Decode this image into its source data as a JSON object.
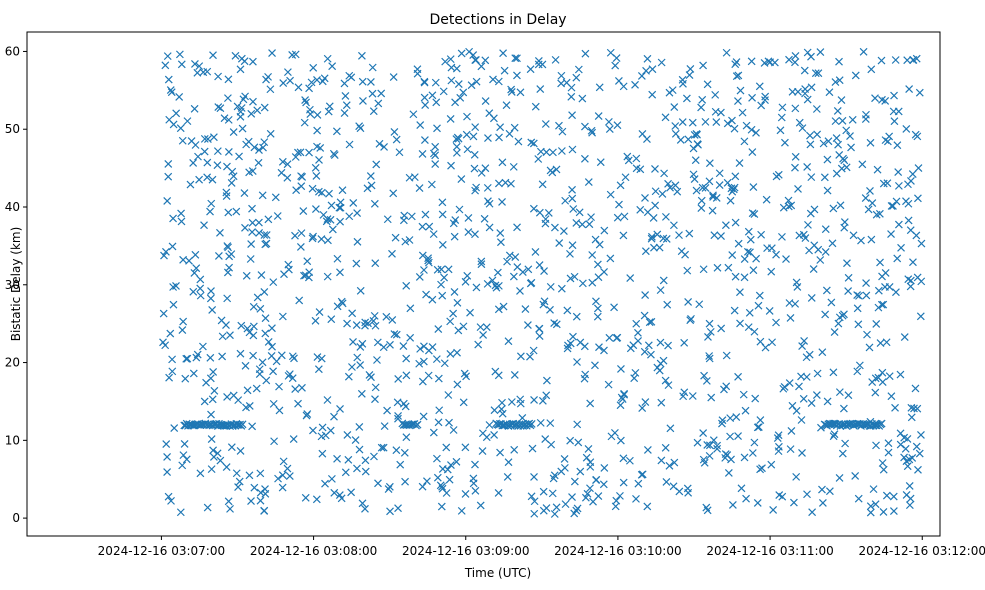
{
  "chart_data": {
    "type": "scatter",
    "title": "Detections in Delay",
    "xlabel": "Time (UTC)",
    "ylabel": "Bistatic Delay (km)",
    "marker": "x",
    "color": "#1f77b4",
    "grid": false,
    "x_unit": "seconds after 2024-12-16 03:07:00",
    "xlim": [
      -53,
      307
    ],
    "ylim": [
      -2.3,
      62.5
    ],
    "x_ticks": [
      {
        "value": 0,
        "label": "2024-12-16 03:07:00"
      },
      {
        "value": 60,
        "label": "2024-12-16 03:08:00"
      },
      {
        "value": 120,
        "label": "2024-12-16 03:09:00"
      },
      {
        "value": 180,
        "label": "2024-12-16 03:10:00"
      },
      {
        "value": 240,
        "label": "2024-12-16 03:11:00"
      },
      {
        "value": 300,
        "label": "2024-12-16 03:12:00"
      }
    ],
    "y_ticks": [
      {
        "value": 0,
        "label": "0"
      },
      {
        "value": 10,
        "label": "10"
      },
      {
        "value": 20,
        "label": "20"
      },
      {
        "value": 30,
        "label": "30"
      },
      {
        "value": 40,
        "label": "40"
      },
      {
        "value": 50,
        "label": "50"
      },
      {
        "value": 60,
        "label": "60"
      }
    ],
    "track_segments": [
      {
        "x_start": 9.0,
        "x_end": 32.0,
        "y": 12.0,
        "count": 48
      },
      {
        "x_start": 95.5,
        "x_end": 101.0,
        "y": 12.0,
        "count": 10
      },
      {
        "x_start": 132.0,
        "x_end": 146.0,
        "y": 12.0,
        "count": 30
      },
      {
        "x_start": 261.5,
        "x_end": 284.0,
        "y": 12.0,
        "count": 48
      }
    ],
    "clutter": {
      "x_range": [
        0,
        300
      ],
      "y_range": [
        0.5,
        60
      ],
      "count": 1450,
      "seed": 20241216
    }
  }
}
